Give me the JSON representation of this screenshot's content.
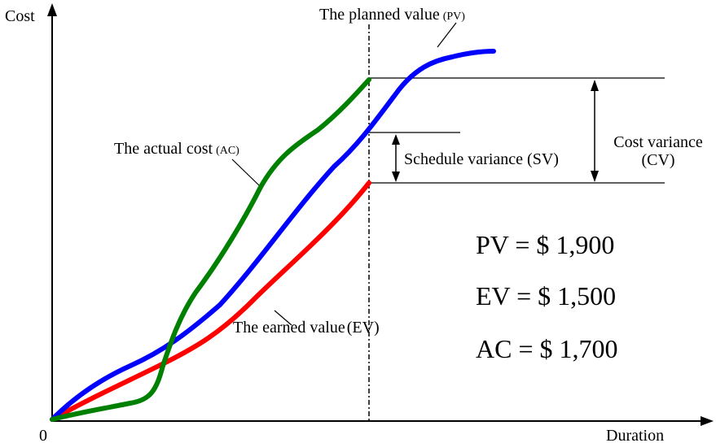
{
  "axes": {
    "y_label": "Cost",
    "x_label": "Duration",
    "origin_label": "0"
  },
  "curves": {
    "pv": {
      "label_main": "The planned value",
      "label_abbr": "(PV)",
      "color": "#0000ff"
    },
    "ac": {
      "label_main": "The actual cost",
      "label_abbr": "(AC)",
      "color": "#008000"
    },
    "ev": {
      "label_main": "The earned value",
      "label_abbr": "(EV)",
      "color": "#ff0000"
    }
  },
  "variances": {
    "sv": "Schedule variance (SV)",
    "cv_line1": "Cost variance",
    "cv_line2": "(CV)"
  },
  "values": {
    "pv": "PV = $ 1,900",
    "ev": "EV = $ 1,500",
    "ac": "AC = $ 1,700"
  }
}
